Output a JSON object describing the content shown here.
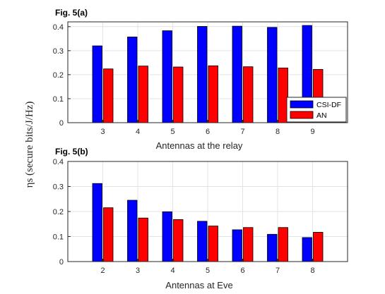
{
  "shared": {
    "ylabel": "ηs (secure bits/J/Hz)",
    "series_colors": [
      "#0000ff",
      "#ff0000"
    ]
  },
  "chart_data": [
    {
      "type": "bar",
      "title": "Fig. 5(a)",
      "xlabel": "Antennas at the relay",
      "ylabel": "ηs (secure bits/J/Hz)",
      "categories": [
        "3",
        "4",
        "5",
        "6",
        "7",
        "8",
        "9"
      ],
      "ylim": [
        0,
        0.42
      ],
      "yticks": [
        "0",
        "0.1",
        "0.2",
        "0.3",
        "0.4"
      ],
      "grid": true,
      "legend_position": "bottom-right",
      "series": [
        {
          "name": "CSI-DF",
          "color": "#0000ff",
          "values": [
            0.32,
            0.357,
            0.383,
            0.401,
            0.402,
            0.397,
            0.405
          ]
        },
        {
          "name": "AN",
          "color": "#ff0000",
          "values": [
            0.224,
            0.236,
            0.232,
            0.237,
            0.233,
            0.228,
            0.222
          ]
        }
      ]
    },
    {
      "type": "bar",
      "title": "Fig. 5(b)",
      "xlabel": "Antennas at Eve",
      "ylabel": "ηs (secure bits/J/Hz)",
      "categories": [
        "2",
        "3",
        "4",
        "5",
        "6",
        "7",
        "8"
      ],
      "ylim": [
        0,
        0.4
      ],
      "yticks": [
        "0",
        "0.1",
        "0.2",
        "0.3",
        "0.4"
      ],
      "grid": true,
      "series": [
        {
          "name": "CSI-DF",
          "color": "#0000ff",
          "values": [
            0.312,
            0.245,
            0.199,
            0.161,
            0.127,
            0.109,
            0.096
          ]
        },
        {
          "name": "AN",
          "color": "#ff0000",
          "values": [
            0.215,
            0.174,
            0.168,
            0.142,
            0.136,
            0.136,
            0.117
          ]
        }
      ]
    }
  ]
}
